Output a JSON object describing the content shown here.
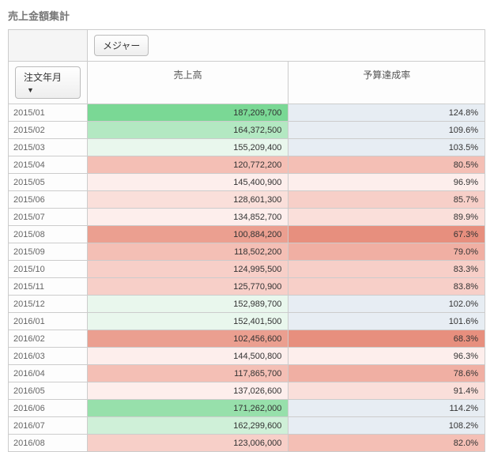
{
  "title": "売上金額集計",
  "buttons": {
    "measure": "メジャー",
    "row_dim": "注文年月"
  },
  "columns": [
    "売上高",
    "予算達成率"
  ],
  "palette": {
    "neutral": "#e7edf3",
    "green_scale": [
      "#e9f7ed",
      "#cff0d8",
      "#b3e8c2",
      "#97e0ab",
      "#7ad895"
    ],
    "red_scale": [
      "#fdeeec",
      "#fadfda",
      "#f7cfc8",
      "#f4bfb5",
      "#f0afa3",
      "#eb9f90",
      "#e78f7e"
    ]
  },
  "rows": [
    {
      "ym": "2015/01",
      "sales": "187,209,700",
      "rate": "124.8%",
      "s_color": "#7ad895",
      "r_color": "#e7edf3"
    },
    {
      "ym": "2015/02",
      "sales": "164,372,500",
      "rate": "109.6%",
      "s_color": "#b3e8c2",
      "r_color": "#e7edf3"
    },
    {
      "ym": "2015/03",
      "sales": "155,209,400",
      "rate": "103.5%",
      "s_color": "#e9f7ed",
      "r_color": "#e7edf3"
    },
    {
      "ym": "2015/04",
      "sales": "120,772,200",
      "rate": "80.5%",
      "s_color": "#f4bfb5",
      "r_color": "#f4bfb5"
    },
    {
      "ym": "2015/05",
      "sales": "145,400,900",
      "rate": "96.9%",
      "s_color": "#fdeeec",
      "r_color": "#fdeeec"
    },
    {
      "ym": "2015/06",
      "sales": "128,601,300",
      "rate": "85.7%",
      "s_color": "#fadfda",
      "r_color": "#f7cfc8"
    },
    {
      "ym": "2015/07",
      "sales": "134,852,700",
      "rate": "89.9%",
      "s_color": "#fdeeec",
      "r_color": "#fadfda"
    },
    {
      "ym": "2015/08",
      "sales": "100,884,200",
      "rate": "67.3%",
      "s_color": "#eb9f90",
      "r_color": "#e78f7e"
    },
    {
      "ym": "2015/09",
      "sales": "118,502,200",
      "rate": "79.0%",
      "s_color": "#f4bfb5",
      "r_color": "#f0afa3"
    },
    {
      "ym": "2015/10",
      "sales": "124,995,500",
      "rate": "83.3%",
      "s_color": "#f7cfc8",
      "r_color": "#f7cfc8"
    },
    {
      "ym": "2015/11",
      "sales": "125,770,900",
      "rate": "83.8%",
      "s_color": "#f7cfc8",
      "r_color": "#f7cfc8"
    },
    {
      "ym": "2015/12",
      "sales": "152,989,700",
      "rate": "102.0%",
      "s_color": "#e9f7ed",
      "r_color": "#e7edf3"
    },
    {
      "ym": "2016/01",
      "sales": "152,401,500",
      "rate": "101.6%",
      "s_color": "#e9f7ed",
      "r_color": "#e7edf3"
    },
    {
      "ym": "2016/02",
      "sales": "102,456,600",
      "rate": "68.3%",
      "s_color": "#eb9f90",
      "r_color": "#e78f7e"
    },
    {
      "ym": "2016/03",
      "sales": "144,500,800",
      "rate": "96.3%",
      "s_color": "#fdeeec",
      "r_color": "#fdeeec"
    },
    {
      "ym": "2016/04",
      "sales": "117,865,700",
      "rate": "78.6%",
      "s_color": "#f4bfb5",
      "r_color": "#f0afa3"
    },
    {
      "ym": "2016/05",
      "sales": "137,026,600",
      "rate": "91.4%",
      "s_color": "#fdeeec",
      "r_color": "#fadfda"
    },
    {
      "ym": "2016/06",
      "sales": "171,262,000",
      "rate": "114.2%",
      "s_color": "#97e0ab",
      "r_color": "#e7edf3"
    },
    {
      "ym": "2016/07",
      "sales": "162,299,600",
      "rate": "108.2%",
      "s_color": "#cff0d8",
      "r_color": "#e7edf3"
    },
    {
      "ym": "2016/08",
      "sales": "123,006,000",
      "rate": "82.0%",
      "s_color": "#f7cfc8",
      "r_color": "#f4bfb5"
    }
  ]
}
